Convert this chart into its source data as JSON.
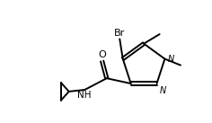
{
  "bg_color": "#ffffff",
  "line_color": "#000000",
  "lw": 1.4,
  "fig_width": 2.36,
  "fig_height": 1.37,
  "dpi": 100,
  "xlim": [
    0,
    10
  ],
  "ylim": [
    0,
    5.8
  ]
}
